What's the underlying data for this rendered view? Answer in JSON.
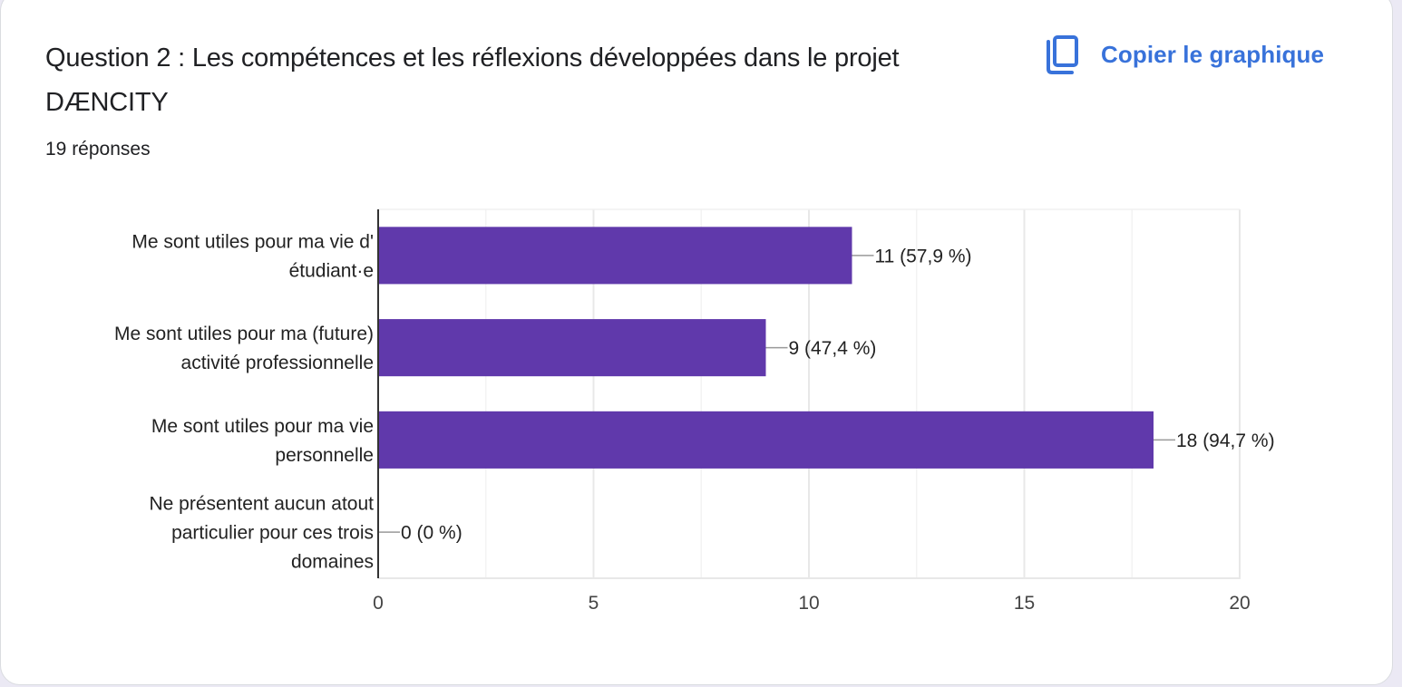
{
  "header": {
    "title": "Question 2 : Les compétences et les réflexions développées dans le projet DÆNCITY",
    "responses": "19 réponses",
    "copy_label": "Copier le graphique",
    "copy_icon": "copy-icon"
  },
  "colors": {
    "bar": "#6039ab",
    "accent": "#3872da",
    "axis": "#333333",
    "grid": "#ececec",
    "leader": "#999999"
  },
  "chart_data": {
    "type": "bar",
    "orientation": "horizontal",
    "title": "Question 2 : Les compétences et les réflexions développées dans le projet DÆNCITY",
    "xlabel": "",
    "ylabel": "",
    "categories": [
      [
        "Me sont utiles pour ma vie d'",
        "étudiant·e"
      ],
      [
        "Me sont utiles pour ma (future)",
        "activité professionnelle"
      ],
      [
        "Me sont utiles pour ma vie",
        "personnelle"
      ],
      [
        "Ne présentent aucun atout",
        "particulier pour ces trois",
        "domaines"
      ]
    ],
    "values": [
      11,
      9,
      18,
      0
    ],
    "data_labels": [
      "11 (57,9 %)",
      "9 (47,4 %)",
      "18 (94,7 %)",
      "0 (0 %)"
    ],
    "xlim": [
      0,
      20
    ],
    "xticks": [
      0,
      5,
      10,
      15,
      20
    ],
    "xtick_labels": [
      "0",
      "5",
      "10",
      "15",
      "20"
    ],
    "minor_grid_step": 2.5,
    "grid": true,
    "legend": "none"
  }
}
